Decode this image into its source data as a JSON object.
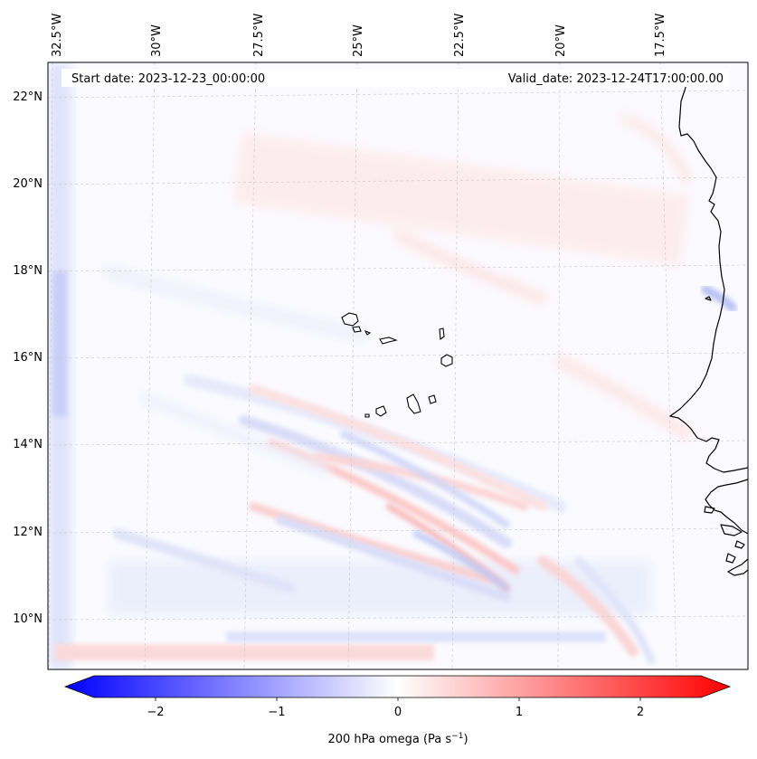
{
  "map": {
    "start_label": "Start date: 2023-12-23_00:00:00",
    "valid_label": "Valid_date: 2023-12-24T17:00:00.00",
    "lon_ticks": [
      "32.5°W",
      "30°W",
      "27.5°W",
      "25°W",
      "22.5°W",
      "20°W",
      "17.5°W"
    ],
    "lat_ticks": [
      "22°N",
      "20°N",
      "18°N",
      "16°N",
      "14°N",
      "12°N",
      "10°N"
    ],
    "lon_values": [
      -32.5,
      -30,
      -27.5,
      -25,
      -22.5,
      -20,
      -17.5
    ],
    "lat_values": [
      22,
      20,
      18,
      16,
      14,
      12,
      10
    ],
    "extent": {
      "lon_min": -33.5,
      "lon_max": -16.0,
      "lat_min": 8.8,
      "lat_max": 22.8
    },
    "features": [
      "Cape Verde islands",
      "West African coastline"
    ]
  },
  "colorbar": {
    "label_prefix": "200 hPa omega (Pa s",
    "label_exp": "−1",
    "label_suffix": ")",
    "tick_labels": [
      "−2",
      "−1",
      "0",
      "1",
      "2"
    ],
    "tick_values": [
      -2,
      -1,
      0,
      1,
      2
    ],
    "vmin": -2.5,
    "vmax": 2.5,
    "colormap": "bwr"
  },
  "colors": {
    "negative": "#0000ff",
    "neutral": "#ffffff",
    "positive": "#ff0000",
    "coast": "#000000",
    "grid": "#c8c8c8"
  }
}
